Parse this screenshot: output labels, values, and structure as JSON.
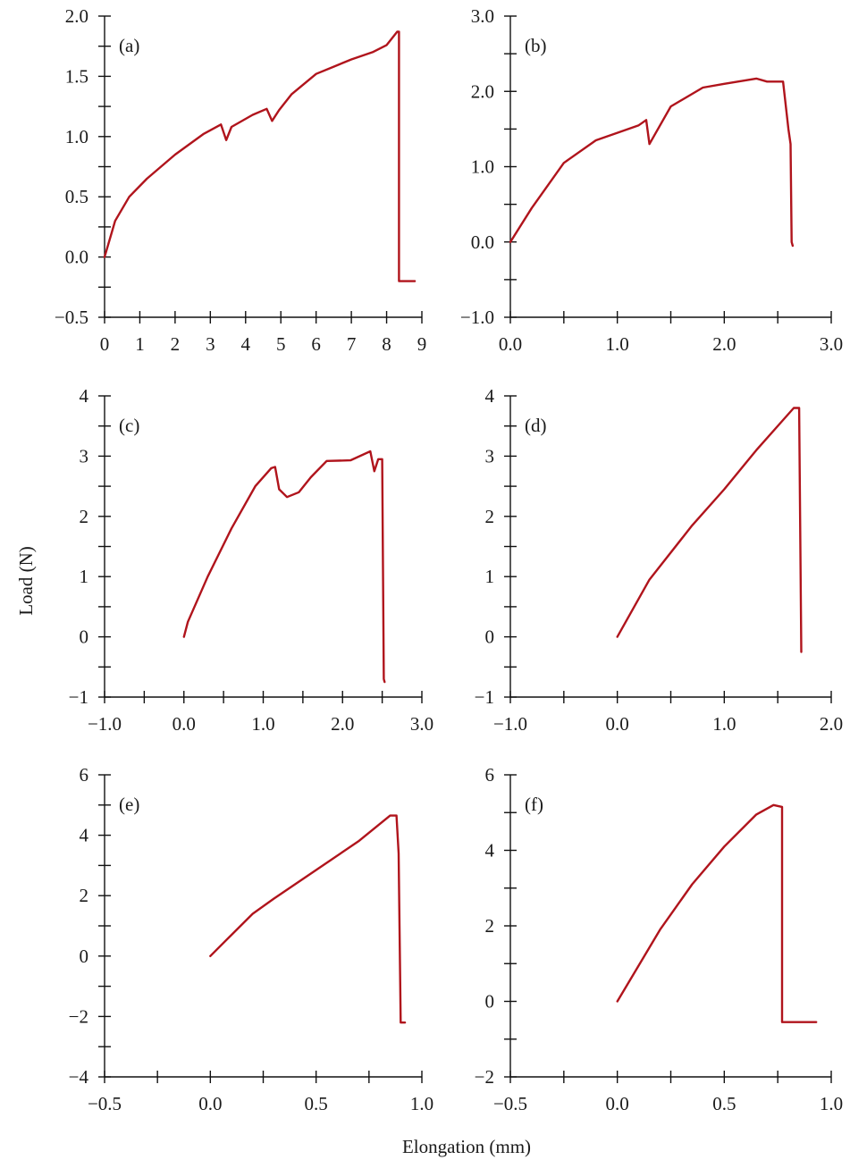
{
  "figure": {
    "ylabel": "Load (N)",
    "xlabel": "Elongation (mm)",
    "series_color": "#b0141c"
  },
  "chart_data": [
    {
      "type": "line",
      "panel_label": "(a)",
      "xlim": [
        0,
        9
      ],
      "ylim": [
        -0.5,
        2.0
      ],
      "xticks": [
        0,
        1,
        2,
        3,
        4,
        5,
        6,
        7,
        8,
        9
      ],
      "xtick_labels": [
        "0",
        "1",
        "2",
        "3",
        "4",
        "5",
        "6",
        "7",
        "8",
        "9"
      ],
      "yticks": [
        -0.5,
        0.0,
        0.5,
        1.0,
        1.5,
        2.0
      ],
      "ytick_labels": [
        "−0.5",
        "0.0",
        "0.5",
        "1.0",
        "1.5",
        "2.0"
      ],
      "x": [
        0,
        0.3,
        0.7,
        1.2,
        2.0,
        2.8,
        3.3,
        3.45,
        3.6,
        4.2,
        4.6,
        4.75,
        4.95,
        5.3,
        6.0,
        6.5,
        7.0,
        7.6,
        8.0,
        8.3,
        8.35,
        8.35,
        8.8
      ],
      "y": [
        0.0,
        0.3,
        0.5,
        0.65,
        0.85,
        1.02,
        1.1,
        0.97,
        1.08,
        1.18,
        1.23,
        1.13,
        1.22,
        1.35,
        1.52,
        1.58,
        1.64,
        1.7,
        1.76,
        1.87,
        1.87,
        -0.2,
        -0.2
      ]
    },
    {
      "type": "line",
      "panel_label": "(b)",
      "xlim": [
        0,
        3.0
      ],
      "ylim": [
        -1.0,
        3.0
      ],
      "xticks": [
        0,
        1.0,
        2.0,
        3.0
      ],
      "xtick_labels": [
        "0.0",
        "1.0",
        "2.0",
        "3.0"
      ],
      "yticks": [
        -1.0,
        0.0,
        1.0,
        2.0,
        3.0
      ],
      "ytick_labels": [
        "−1.0",
        "0.0",
        "1.0",
        "2.0",
        "3.0"
      ],
      "x": [
        0,
        0.2,
        0.5,
        0.8,
        1.0,
        1.2,
        1.27,
        1.3,
        1.5,
        1.8,
        2.0,
        2.3,
        2.4,
        2.55,
        2.6,
        2.62,
        2.63,
        2.64
      ],
      "y": [
        0.0,
        0.45,
        1.05,
        1.35,
        1.45,
        1.55,
        1.62,
        1.3,
        1.8,
        2.05,
        2.1,
        2.17,
        2.13,
        2.13,
        1.5,
        1.3,
        0.0,
        -0.05
      ]
    },
    {
      "type": "line",
      "panel_label": "(c)",
      "xlim": [
        -1.0,
        3.0
      ],
      "ylim": [
        -1,
        4
      ],
      "xticks": [
        -1.0,
        0.0,
        1.0,
        2.0,
        3.0
      ],
      "xtick_labels": [
        "−1.0",
        "0.0",
        "1.0",
        "2.0",
        "3.0"
      ],
      "yticks": [
        -1,
        0,
        1,
        2,
        3,
        4
      ],
      "ytick_labels": [
        "−1",
        "0",
        "1",
        "2",
        "3",
        "4"
      ],
      "x": [
        0,
        0.05,
        0.3,
        0.6,
        0.9,
        1.1,
        1.15,
        1.2,
        1.3,
        1.45,
        1.6,
        1.8,
        2.1,
        2.35,
        2.4,
        2.45,
        2.5,
        2.52,
        2.53
      ],
      "y": [
        0.0,
        0.25,
        1.0,
        1.8,
        2.5,
        2.8,
        2.82,
        2.45,
        2.32,
        2.4,
        2.65,
        2.92,
        2.93,
        3.08,
        2.75,
        2.95,
        2.95,
        -0.7,
        -0.75
      ]
    },
    {
      "type": "line",
      "panel_label": "(d)",
      "xlim": [
        -1.0,
        2.0
      ],
      "ylim": [
        -1,
        4
      ],
      "xticks": [
        -1.0,
        0.0,
        1.0,
        2.0
      ],
      "xtick_labels": [
        "−1.0",
        "0.0",
        "1.0",
        "2.0"
      ],
      "yticks": [
        -1,
        0,
        1,
        2,
        3,
        4
      ],
      "ytick_labels": [
        "−1",
        "0",
        "1",
        "2",
        "3",
        "4"
      ],
      "x": [
        0,
        0.3,
        0.7,
        1.0,
        1.3,
        1.55,
        1.65,
        1.7,
        1.72
      ],
      "y": [
        0.0,
        0.95,
        1.85,
        2.45,
        3.1,
        3.6,
        3.8,
        3.8,
        -0.25
      ]
    },
    {
      "type": "line",
      "panel_label": "(e)",
      "xlim": [
        -0.5,
        1.0
      ],
      "ylim": [
        -4,
        6
      ],
      "xticks": [
        -0.5,
        0.0,
        0.5,
        1.0
      ],
      "xtick_labels": [
        "−0.5",
        "0.0",
        "0.5",
        "1.0"
      ],
      "yticks": [
        -4,
        -2,
        0,
        2,
        4,
        6
      ],
      "ytick_labels": [
        "−4",
        "−2",
        "0",
        "2",
        "4",
        "6"
      ],
      "x": [
        0,
        0.1,
        0.2,
        0.3,
        0.5,
        0.7,
        0.85,
        0.88,
        0.89,
        0.9,
        0.92
      ],
      "y": [
        0.0,
        0.7,
        1.4,
        1.9,
        2.85,
        3.8,
        4.65,
        4.65,
        3.4,
        -2.2,
        -2.2
      ]
    },
    {
      "type": "line",
      "panel_label": "(f)",
      "xlim": [
        -0.5,
        1.0
      ],
      "ylim": [
        -2,
        6
      ],
      "xticks": [
        -0.5,
        0.0,
        0.5,
        1.0
      ],
      "xtick_labels": [
        "−0.5",
        "0.0",
        "0.5",
        "1.0"
      ],
      "yticks": [
        -2,
        0,
        2,
        4,
        6
      ],
      "ytick_labels": [
        "−2",
        "0",
        "2",
        "4",
        "6"
      ],
      "x": [
        0,
        0.1,
        0.2,
        0.35,
        0.5,
        0.65,
        0.73,
        0.77,
        0.77,
        0.93
      ],
      "y": [
        0.0,
        0.95,
        1.9,
        3.1,
        4.1,
        4.95,
        5.2,
        5.15,
        -0.55,
        -0.55
      ]
    }
  ]
}
